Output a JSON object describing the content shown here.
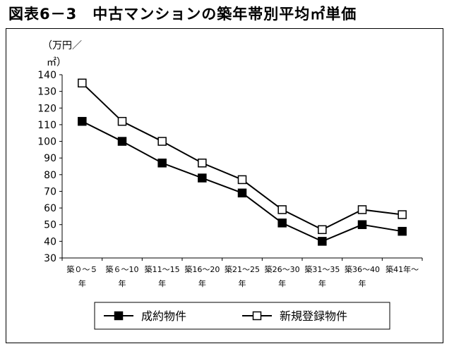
{
  "title": "図表6－3　中古マンションの築年帯別平均㎡単価",
  "unit_line1": "（万円／",
  "unit_line2": "㎡）",
  "chart_data": {
    "type": "line",
    "categories": [
      [
        "築０～５",
        "年"
      ],
      [
        "築６～10",
        "年"
      ],
      [
        "築11～15",
        "年"
      ],
      [
        "築16～20",
        "年"
      ],
      [
        "築21～25",
        "年"
      ],
      [
        "築26～30",
        "年"
      ],
      [
        "築31～35",
        "年"
      ],
      [
        "築36～40",
        "年"
      ],
      [
        "築41年～",
        ""
      ]
    ],
    "series": [
      {
        "name": "成約物件",
        "marker": "filled-square",
        "values": [
          112,
          100,
          87,
          78,
          69,
          51,
          40,
          50,
          46
        ]
      },
      {
        "name": "新規登録物件",
        "marker": "open-square",
        "values": [
          135,
          112,
          100,
          87,
          77,
          59,
          47,
          59,
          56
        ]
      }
    ],
    "yticks": [
      "30",
      "40",
      "50",
      "60",
      "70",
      "80",
      "90",
      "100",
      "110",
      "120",
      "130",
      "140"
    ],
    "ylim": [
      30,
      140
    ],
    "grid": false,
    "legend": "bottom"
  }
}
